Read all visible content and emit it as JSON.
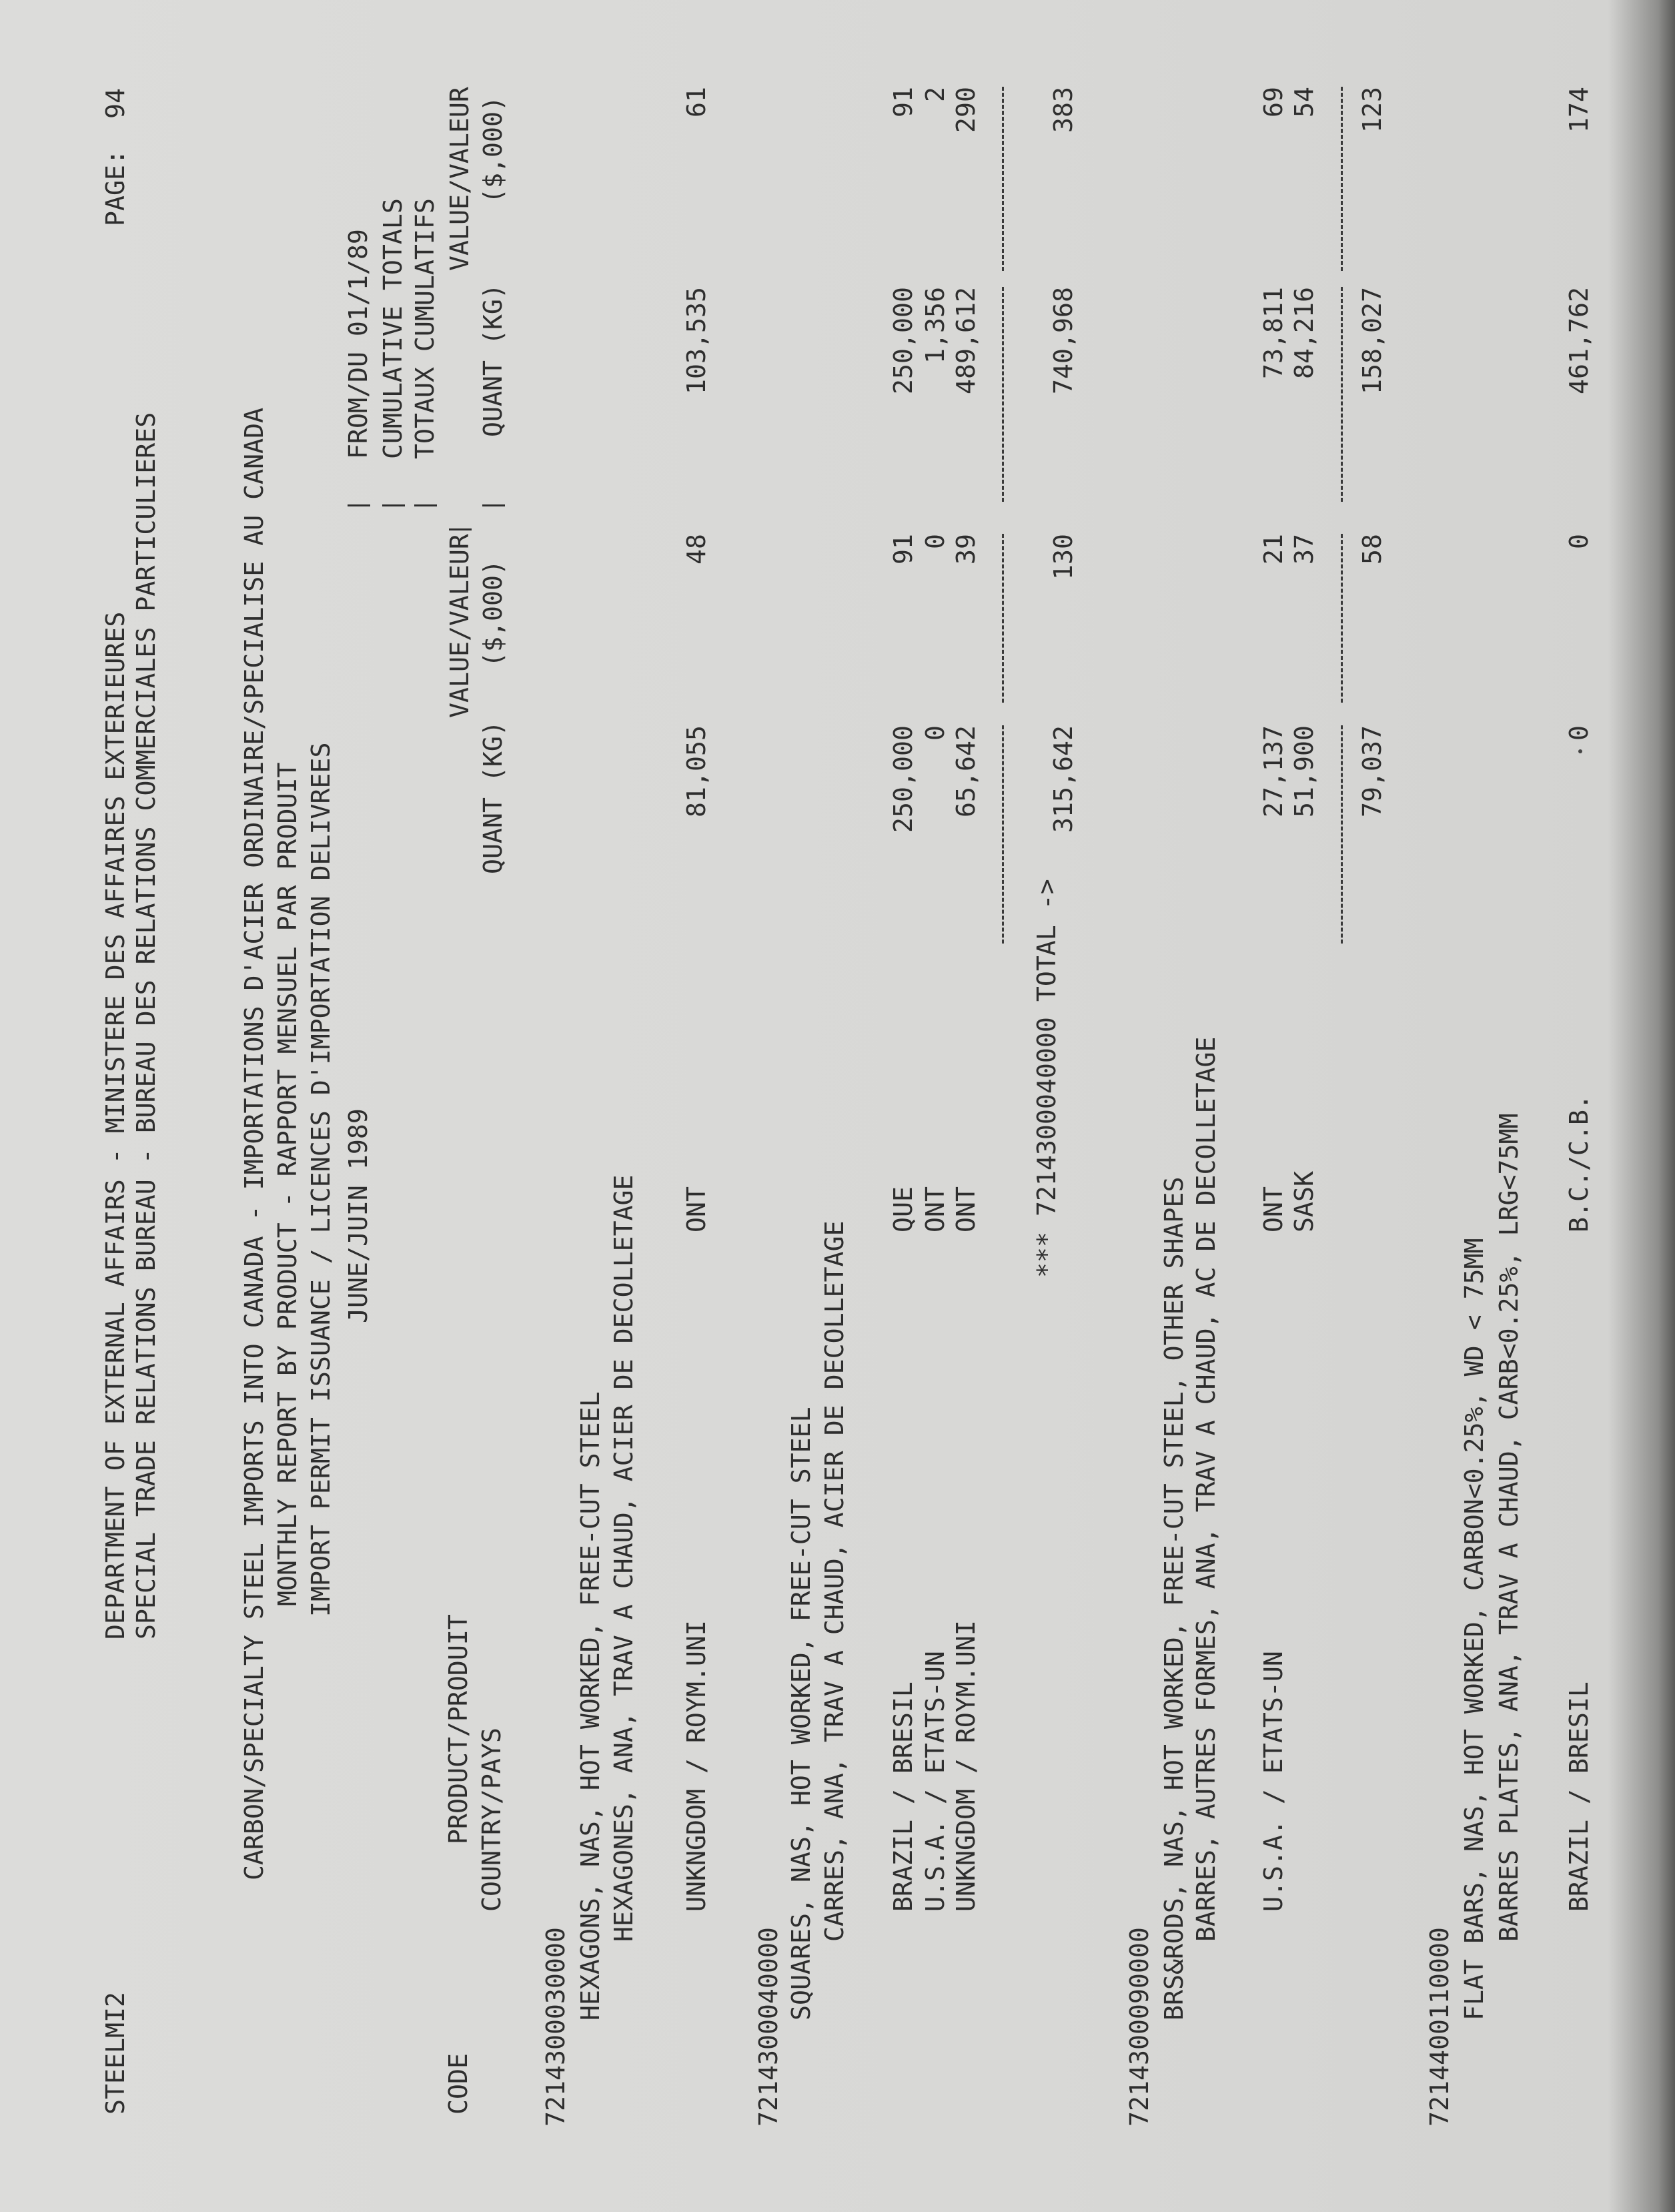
{
  "header": {
    "program_id": "STEELMI2",
    "department": "DEPARTMENT OF EXTERNAL AFFAIRS - MINISTERE DES AFFAIRES EXTERIEURES",
    "bureau": "SPECIAL TRADE RELATIONS BUREAU - BUREAU DES RELATIONS COMMERCIALES PARTICULIERES",
    "page_label": "PAGE:",
    "page_number": "94"
  },
  "report": {
    "title": "CARBON/SPECIALTY STEEL IMPORTS INTO CANADA - IMPORTATIONS D'ACIER ORDINAIRE/SPECIALISE AU CANADA",
    "subtitle": "MONTHLY REPORT BY PRODUCT - RAPPORT MENSUEL PAR PRODUIT",
    "permit_line": "IMPORT PERMIT ISSUANCE / LICENCES D'IMPORTATION DELIVREES",
    "period": "JUNE/JUIN 1989"
  },
  "columns": {
    "code": "CODE",
    "product": "PRODUCT/PRODUIT",
    "country": "COUNTRY/PAYS",
    "month_value": "VALUE/VALEUR",
    "month_quant": "QUANT (KG)",
    "month_units": "($,000)",
    "cum_from": "FROM/DU 01/1/89",
    "cum_en": "CUMULATIVE TOTALS",
    "cum_fr": "TOTAUX CUMULATIFS",
    "cum_value": "VALUE/VALEUR",
    "cum_quant": "QUANT (KG)",
    "cum_units": "($,000)"
  },
  "sections": [
    {
      "code": "7214300030000",
      "desc_en": "HEXAGONS, NAS, HOT WORKED, FREE-CUT STEEL",
      "desc_fr": "HEXAGONES, ANA, TRAV A CHAUD, ACIER DE DECOLLETAGE",
      "rows": [
        {
          "country": "UNKNGDOM / ROYM.UNI",
          "province": "ONT",
          "quant": "81,055",
          "value": "48",
          "cum_quant": "103,535",
          "cum_value": "61"
        }
      ]
    },
    {
      "code": "7214300040000",
      "desc_en": "SQUARES, NAS, HOT WORKED, FREE-CUT STEEL",
      "desc_fr": "CARRES, ANA, TRAV A CHAUD, ACIER DE DECOLLETAGE",
      "rows": [
        {
          "country": "BRAZIL / BRESIL",
          "province": "QUE",
          "quant": "250,000",
          "value": "91",
          "cum_quant": "250,000",
          "cum_value": "91"
        },
        {
          "country": "U.S.A. / ETATS-UN",
          "province": "ONT",
          "quant": "0",
          "value": "0",
          "cum_quant": "1,356",
          "cum_value": "2"
        },
        {
          "country": "UNKNGDOM / ROYM.UNI",
          "province": "ONT",
          "quant": "65,642",
          "value": "39",
          "cum_quant": "489,612",
          "cum_value": "290"
        }
      ],
      "total": {
        "label": "*** 7214300040000 TOTAL ->",
        "quant": "315,642",
        "value": "130",
        "cum_quant": "740,968",
        "cum_value": "383"
      }
    },
    {
      "code": "7214300090000",
      "desc_en": "BRS&RODS, NAS, HOT WORKED, FREE-CUT STEEL, OTHER SHAPES",
      "desc_fr": "BARRES, AUTRES FORMES, ANA, TRAV A CHAUD, AC DE DECOLLETAGE",
      "rows": [
        {
          "country": "U.S.A. / ETATS-UN",
          "province": "ONT",
          "quant": "27,137",
          "value": "21",
          "cum_quant": "73,811",
          "cum_value": "69"
        },
        {
          "country": "",
          "province": "SASK",
          "quant": "51,900",
          "value": "37",
          "cum_quant": "84,216",
          "cum_value": "54"
        }
      ],
      "subtotal": {
        "quant": "79,037",
        "value": "58",
        "cum_quant": "158,027",
        "cum_value": "123"
      }
    },
    {
      "code": "7214400110000",
      "desc_en": "FLAT BARS, NAS, HOT WORKED, CARBON<0.25%, WD < 75MM",
      "desc_fr": "BARRES PLATES, ANA, TRAV A CHAUD, CARB<0.25%, LRG<75MM",
      "rows": [
        {
          "country": "BRAZIL / BRESIL",
          "province": "B.C./C.B.",
          "quant": "0",
          "value": "0",
          "cum_quant": "461,762",
          "cum_value": "174"
        }
      ]
    }
  ]
}
